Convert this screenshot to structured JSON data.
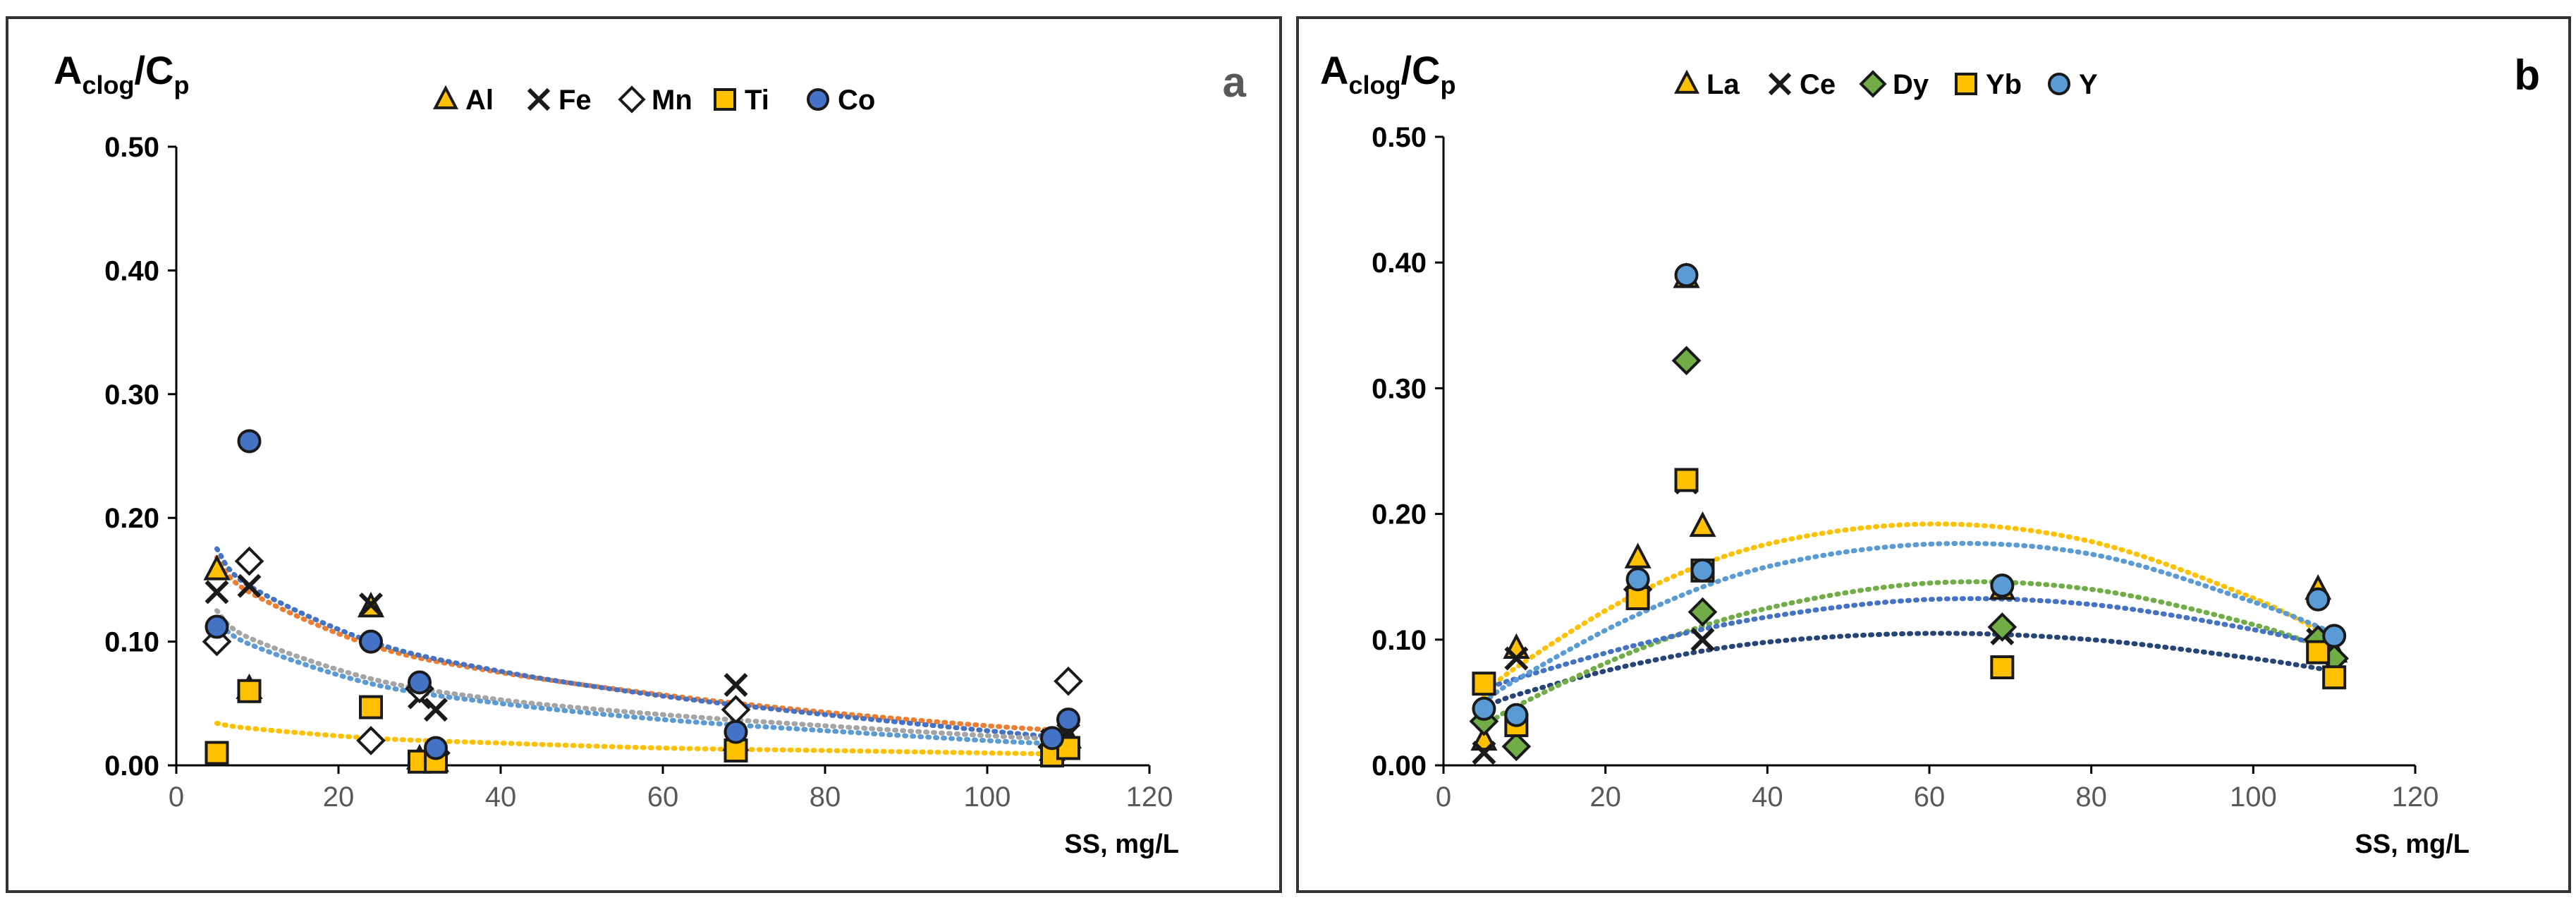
{
  "chart_data": [
    {
      "type": "scatter",
      "panel_letter": "a",
      "ylabel_main": "A",
      "ylabel_sub1": "clog",
      "ylabel_slash": "/C",
      "ylabel_sub2": "p",
      "xlabel": "SS, mg/L",
      "xlim": [
        0,
        120
      ],
      "ylim": [
        0,
        0.5
      ],
      "xticks": [
        "0",
        "20",
        "40",
        "60",
        "80",
        "100",
        "120"
      ],
      "yticks": [
        "0.00",
        "0.10",
        "0.20",
        "0.30",
        "0.40",
        "0.50"
      ],
      "grid": false,
      "legend": "top-center",
      "series": [
        {
          "name": "Al",
          "marker": "triangle",
          "color": "#FFC000",
          "x": [
            5,
            9,
            24,
            30,
            32,
            69,
            108,
            110
          ],
          "y": [
            0.158,
            0.062,
            0.128,
            0.005,
            0.003,
            0.02,
            0.012,
            0.022
          ]
        },
        {
          "name": "Fe",
          "marker": "x",
          "color": "#222222",
          "x": [
            5,
            9,
            24,
            30,
            32,
            69,
            108,
            110
          ],
          "y": [
            0.14,
            0.145,
            0.13,
            0.055,
            0.045,
            0.065,
            0.02,
            0.025
          ]
        },
        {
          "name": "Mn",
          "marker": "diamond",
          "color": "#FFFFFF",
          "x": [
            5,
            9,
            24,
            30,
            32,
            69,
            108,
            110
          ],
          "y": [
            0.1,
            0.165,
            0.02,
            0.062,
            0.01,
            0.045,
            0.015,
            0.068
          ]
        },
        {
          "name": "Ti",
          "marker": "square",
          "color": "#FFC000",
          "x": [
            5,
            9,
            24,
            30,
            32,
            69,
            108,
            110
          ],
          "y": [
            0.01,
            0.06,
            0.047,
            0.003,
            0.003,
            0.012,
            0.008,
            0.014
          ]
        },
        {
          "name": "Co",
          "marker": "circle",
          "color": "#4472C4",
          "x": [
            5,
            9,
            24,
            30,
            32,
            69,
            108,
            110
          ],
          "y": [
            0.112,
            0.262,
            0.1,
            0.067,
            0.014,
            0.027,
            0.022,
            0.037
          ]
        }
      ],
      "trendlines": [
        {
          "series": "Al",
          "color": "#ED7D31",
          "x": [
            5,
            9,
            24,
            40,
            60,
            80,
            100,
            110
          ],
          "y": [
            0.168,
            0.14,
            0.097,
            0.075,
            0.057,
            0.043,
            0.032,
            0.028
          ]
        },
        {
          "series": "Fe",
          "color": "#4472C4",
          "x": [
            5,
            9,
            24,
            40,
            60,
            80,
            100,
            110
          ],
          "y": [
            0.175,
            0.145,
            0.1,
            0.076,
            0.056,
            0.041,
            0.028,
            0.022
          ]
        },
        {
          "series": "Mn",
          "color": "#A5A5A5",
          "x": [
            5,
            9,
            24,
            40,
            60,
            80,
            100,
            110
          ],
          "y": [
            0.125,
            0.103,
            0.07,
            0.053,
            0.041,
            0.032,
            0.024,
            0.021
          ]
        },
        {
          "series": "Ti",
          "color": "#FFC000",
          "x": [
            5,
            9,
            24,
            40,
            60,
            80,
            100,
            110
          ],
          "y": [
            0.034,
            0.03,
            0.022,
            0.018,
            0.014,
            0.012,
            0.01,
            0.009
          ]
        },
        {
          "series": "Co",
          "color": "#5B9BD5",
          "x": [
            5,
            9,
            24,
            40,
            60,
            80,
            100,
            110
          ],
          "y": [
            0.118,
            0.098,
            0.066,
            0.05,
            0.037,
            0.028,
            0.02,
            0.017
          ]
        }
      ]
    },
    {
      "type": "scatter",
      "panel_letter": "b",
      "ylabel_main": "A",
      "ylabel_sub1": "clog",
      "ylabel_slash": "/C",
      "ylabel_sub2": "p",
      "xlabel": "SS, mg/L",
      "xlim": [
        0,
        120
      ],
      "ylim": [
        0,
        0.5
      ],
      "xticks": [
        "0",
        "20",
        "40",
        "60",
        "80",
        "100",
        "120"
      ],
      "yticks": [
        "0.00",
        "0.10",
        "0.20",
        "0.30",
        "0.40",
        "0.50"
      ],
      "grid": false,
      "legend": "top-center",
      "series": [
        {
          "name": "La",
          "marker": "triangle",
          "color": "#FFC000",
          "x": [
            5,
            9,
            24,
            30,
            32,
            69,
            108,
            110
          ],
          "y": [
            0.02,
            0.093,
            0.165,
            0.388,
            0.19,
            0.14,
            0.14,
            0.09
          ]
        },
        {
          "name": "Ce",
          "marker": "x",
          "color": "#222222",
          "x": [
            5,
            9,
            24,
            30,
            32,
            69,
            108,
            110
          ],
          "y": [
            0.01,
            0.085,
            0.14,
            0.225,
            0.1,
            0.105,
            0.1,
            0.08
          ]
        },
        {
          "name": "Dy",
          "marker": "diamond",
          "color": "#70AD47",
          "x": [
            5,
            9,
            24,
            30,
            32,
            69,
            108,
            110
          ],
          "y": [
            0.035,
            0.015,
            0.14,
            0.322,
            0.122,
            0.11,
            0.1,
            0.085
          ]
        },
        {
          "name": "Yb",
          "marker": "square",
          "color": "#FFC000",
          "x": [
            5,
            9,
            24,
            30,
            32,
            69,
            108,
            110
          ],
          "y": [
            0.065,
            0.032,
            0.133,
            0.227,
            0.155,
            0.078,
            0.09,
            0.07
          ]
        },
        {
          "name": "Y",
          "marker": "circle",
          "color": "#5B9BD5",
          "x": [
            5,
            9,
            24,
            30,
            32,
            69,
            108,
            110
          ],
          "y": [
            0.045,
            0.04,
            0.148,
            0.39,
            0.155,
            0.143,
            0.132,
            0.103
          ]
        }
      ],
      "trendlines": [
        {
          "series": "La",
          "color": "#FFC000",
          "x": [
            5,
            9,
            24,
            40,
            60,
            80,
            100,
            110
          ],
          "y": [
            0.055,
            0.078,
            0.137,
            0.176,
            0.192,
            0.178,
            0.133,
            0.1
          ]
        },
        {
          "series": "Ce",
          "color": "#264478",
          "x": [
            5,
            9,
            24,
            40,
            60,
            80,
            100,
            110
          ],
          "y": [
            0.045,
            0.056,
            0.081,
            0.098,
            0.105,
            0.1,
            0.085,
            0.075
          ]
        },
        {
          "series": "Dy",
          "color": "#70AD47",
          "x": [
            5,
            9,
            24,
            40,
            60,
            80,
            100,
            110
          ],
          "y": [
            0.03,
            0.047,
            0.092,
            0.125,
            0.145,
            0.14,
            0.112,
            0.09
          ]
        },
        {
          "series": "Yb",
          "color": "#4472C4",
          "x": [
            5,
            9,
            24,
            40,
            60,
            80,
            100,
            110
          ],
          "y": [
            0.06,
            0.069,
            0.096,
            0.118,
            0.132,
            0.128,
            0.108,
            0.093
          ]
        },
        {
          "series": "Y",
          "color": "#5B9BD5",
          "x": [
            5,
            9,
            24,
            40,
            60,
            80,
            100,
            110
          ],
          "y": [
            0.05,
            0.068,
            0.12,
            0.158,
            0.176,
            0.168,
            0.13,
            0.105
          ]
        }
      ]
    }
  ]
}
